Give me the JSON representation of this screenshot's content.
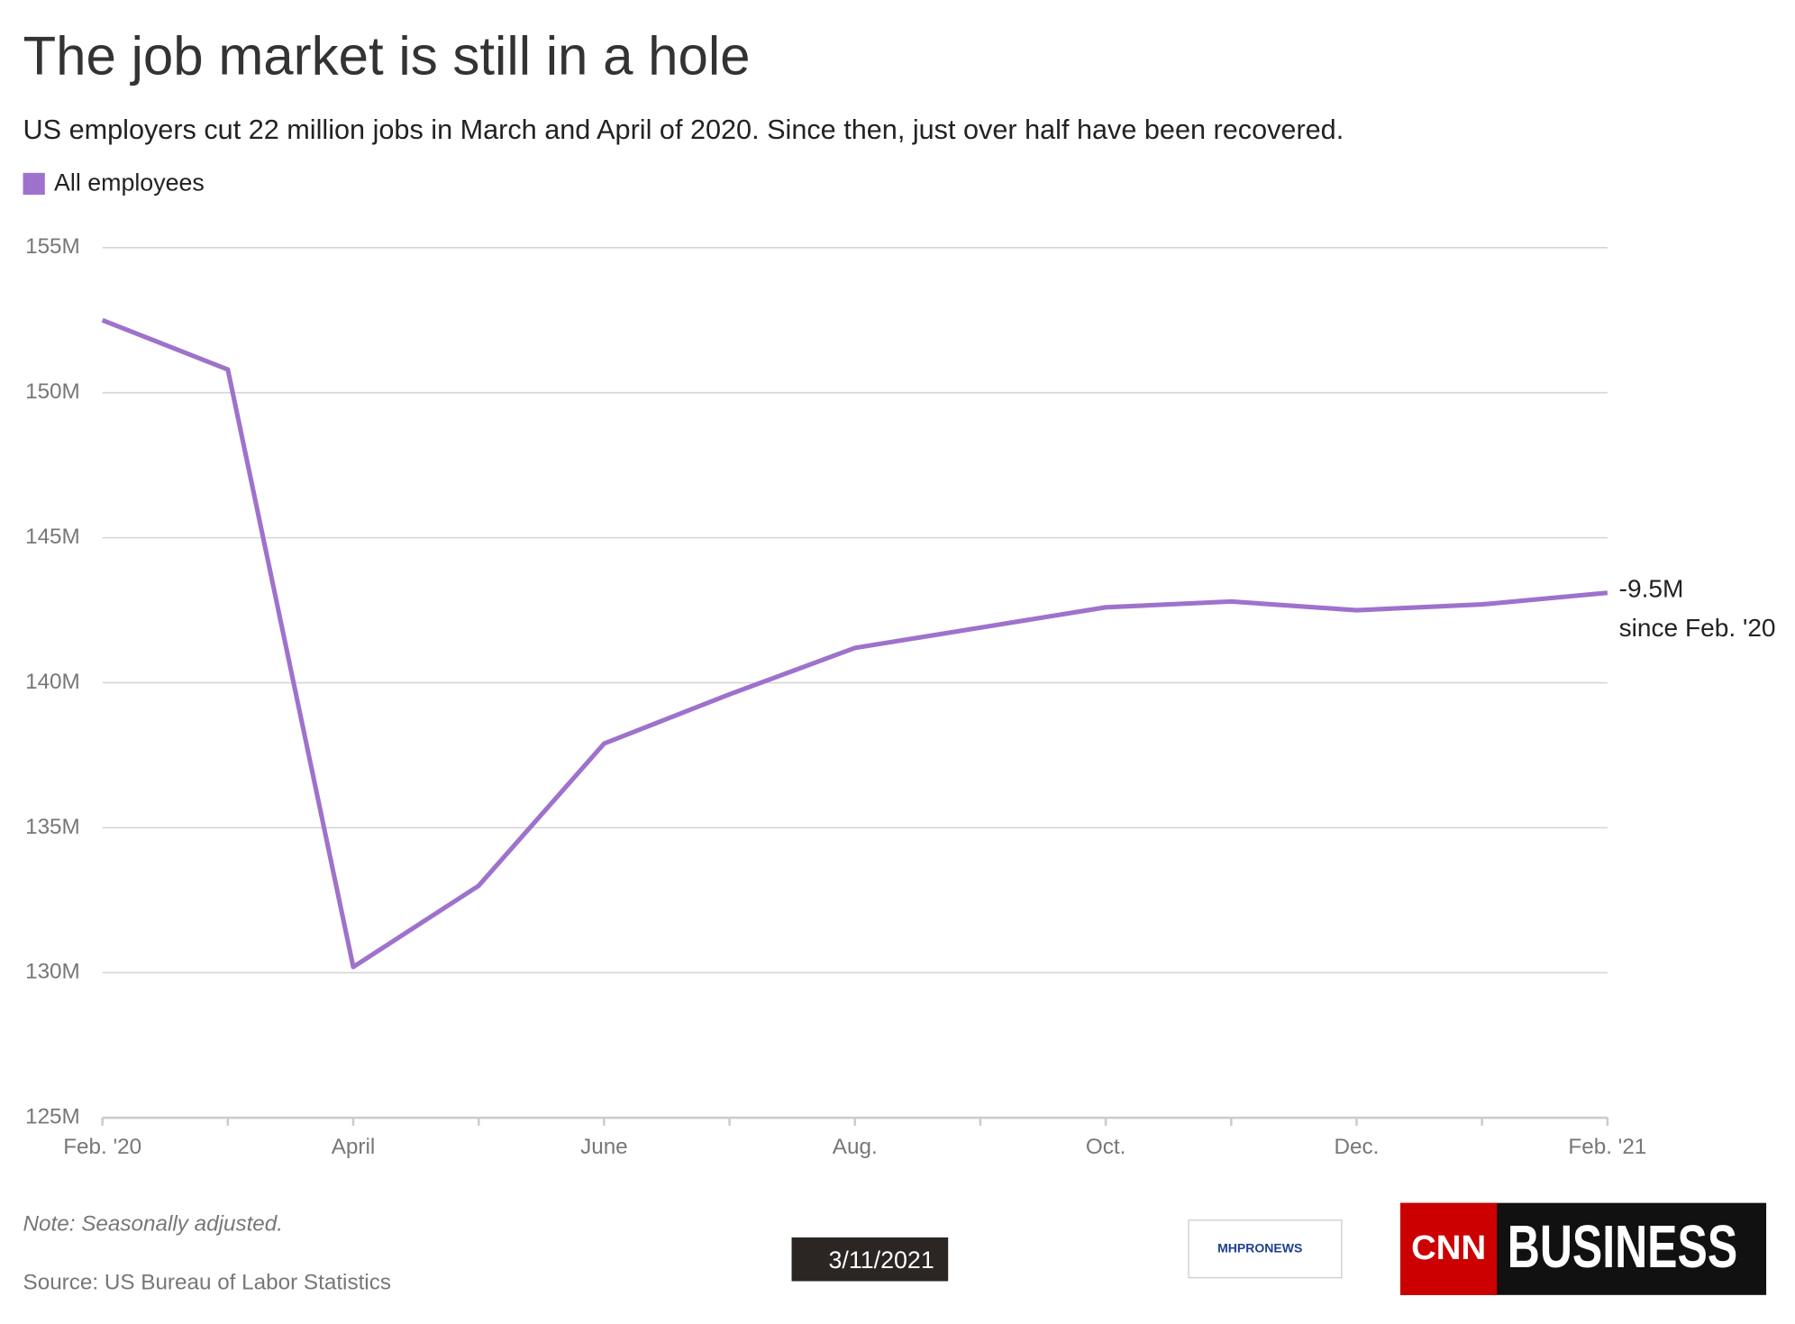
{
  "chart_data": {
    "type": "line",
    "title": "The job market is still in a hole",
    "subtitle": "US employers cut 22 million jobs in March and April of 2020. Since then, just over half have been recovered.",
    "categories": [
      "Feb. '20",
      null,
      "April",
      null,
      "June",
      null,
      "Aug.",
      null,
      "Oct.",
      null,
      "Dec.",
      null,
      "Feb. '21"
    ],
    "series": [
      {
        "name": "All employees",
        "color": "#9e72cc",
        "values": [
          152.5,
          150.8,
          130.2,
          133.0,
          137.9,
          139.6,
          141.2,
          141.9,
          142.6,
          142.8,
          142.5,
          142.7,
          143.1
        ]
      }
    ],
    "ylim": [
      125,
      155
    ],
    "yticks": [
      {
        "value": 125,
        "label": "125M"
      },
      {
        "value": 130,
        "label": "130M"
      },
      {
        "value": 135,
        "label": "135M"
      },
      {
        "value": 140,
        "label": "140M"
      },
      {
        "value": 145,
        "label": "145M"
      },
      {
        "value": 150,
        "label": "150M"
      },
      {
        "value": 155,
        "label": "155M"
      }
    ],
    "grid": true,
    "legend": "top-left",
    "annotations": [
      "-9.5M",
      "since Feb. '20"
    ],
    "note": "Note: Seasonally adjusted.",
    "source": "Source: US Bureau of Labor Statistics"
  },
  "overlay": {
    "date": "3/11/2021",
    "logo_left": "MHPRONEWS",
    "logo_right_a": "CNN",
    "logo_right_b": "BUSINESS"
  }
}
